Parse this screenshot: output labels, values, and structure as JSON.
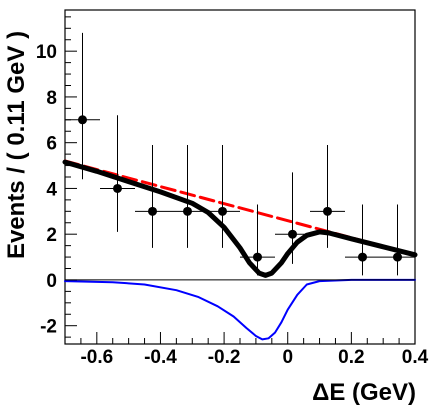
{
  "chart_data": {
    "type": "scatter",
    "xlabel": "ΔE (GeV)",
    "ylabel": "Events / ( 0.11 GeV )",
    "xlim": [
      -0.7,
      0.4
    ],
    "ylim": [
      -2.8,
      11.8
    ],
    "grid": false,
    "x_ticks": [
      -0.6,
      -0.4,
      -0.2,
      0,
      0.2,
      0.4
    ],
    "x_tick_labels": [
      "-0.6",
      "-0.4",
      "-0.2",
      "0",
      "0.2",
      "0.4"
    ],
    "y_ticks": [
      -2,
      0,
      2,
      4,
      6,
      8,
      10
    ],
    "y_tick_labels": [
      "-2",
      "0",
      "2",
      "4",
      "6",
      "8",
      "10"
    ],
    "series": [
      {
        "kind": "points",
        "color": "#000000",
        "x": [
          -0.645,
          -0.535,
          -0.425,
          -0.315,
          -0.205,
          -0.095,
          0.015,
          0.125,
          0.235,
          0.345
        ],
        "y": [
          7,
          4,
          3,
          3,
          3,
          1,
          2,
          3,
          1,
          1
        ],
        "y_err_low": [
          2.6,
          1.9,
          1.6,
          1.6,
          1.6,
          0.8,
          1.3,
          1.6,
          0.8,
          0.8
        ],
        "y_err_high": [
          3.8,
          3.2,
          2.9,
          2.9,
          2.9,
          2.3,
          2.7,
          2.9,
          2.3,
          2.3
        ],
        "x_err": 0.055
      },
      {
        "kind": "curve",
        "style": "dashed",
        "color": "#ff0000",
        "x": [
          -0.7,
          0.4
        ],
        "y": [
          5.2,
          1.1
        ]
      },
      {
        "kind": "curve",
        "style": "solid",
        "color": "#000000",
        "x": [
          -0.7,
          -0.6,
          -0.5,
          -0.4,
          -0.3,
          -0.25,
          -0.2,
          -0.15,
          -0.12,
          -0.09,
          -0.07,
          -0.05,
          -0.02,
          0.0,
          0.03,
          0.06,
          0.1,
          0.13,
          0.2,
          0.3,
          0.4
        ],
        "y": [
          5.15,
          4.75,
          4.3,
          3.85,
          3.35,
          2.95,
          2.3,
          1.4,
          0.75,
          0.3,
          0.2,
          0.3,
          0.75,
          1.15,
          1.65,
          1.95,
          2.1,
          2.05,
          1.8,
          1.45,
          1.1
        ]
      },
      {
        "kind": "curve",
        "style": "solid",
        "color": "#0000ff",
        "x": [
          -0.7,
          -0.55,
          -0.45,
          -0.35,
          -0.28,
          -0.22,
          -0.17,
          -0.13,
          -0.1,
          -0.08,
          -0.06,
          -0.04,
          -0.02,
          0.0,
          0.03,
          0.06,
          0.1,
          0.2,
          0.4
        ],
        "y": [
          -0.05,
          -0.1,
          -0.2,
          -0.45,
          -0.75,
          -1.15,
          -1.6,
          -2.1,
          -2.45,
          -2.6,
          -2.55,
          -2.3,
          -1.85,
          -1.3,
          -0.65,
          -0.2,
          -0.05,
          0.0,
          0.0
        ]
      },
      {
        "kind": "curve",
        "style": "solid",
        "color": "#000000",
        "x": [
          -0.7,
          0.4
        ],
        "y": [
          0,
          0
        ]
      }
    ]
  }
}
